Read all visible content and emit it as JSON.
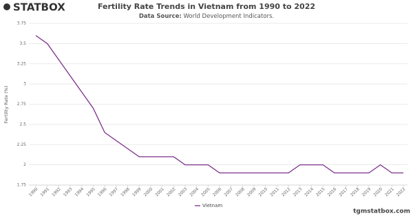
{
  "chart_data": {
    "type": "line",
    "logo": "STATBOX",
    "title": "Fertility Rate Trends in Vietnam from 1990 to 2022",
    "subtitle_label": "Data Source:",
    "subtitle": "World Development Indicators.",
    "y_label": "Fertility Rate (%)",
    "footer": "tgmstatbox.com",
    "x": [
      1990,
      1991,
      1992,
      1993,
      1994,
      1995,
      1996,
      1997,
      1998,
      1999,
      2000,
      2001,
      2002,
      2003,
      2004,
      2005,
      2006,
      2007,
      2008,
      2009,
      2010,
      2011,
      2012,
      2013,
      2014,
      2015,
      2016,
      2017,
      2018,
      2019,
      2020,
      2021,
      2022
    ],
    "xlim": [
      1990,
      2022
    ],
    "xticks": [
      1990,
      1991,
      1992,
      1993,
      1994,
      1995,
      1996,
      1997,
      1998,
      1999,
      2000,
      2001,
      2002,
      2003,
      2004,
      2005,
      2006,
      2007,
      2008,
      2009,
      2010,
      2011,
      2012,
      2013,
      2014,
      2015,
      2016,
      2017,
      2018,
      2019,
      2020,
      2021,
      2022
    ],
    "series": [
      {
        "name": "Vietnam",
        "color": "#7b2d8b",
        "values": [
          3.6,
          3.5,
          3.3,
          3.1,
          2.9,
          2.7,
          2.4,
          2.3,
          2.2,
          2.1,
          2.1,
          2.1,
          2.1,
          2.0,
          2.0,
          2.0,
          1.9,
          1.9,
          1.9,
          1.9,
          1.9,
          1.9,
          1.9,
          2.0,
          2.0,
          2.0,
          1.9,
          1.9,
          1.9,
          1.9,
          2.0,
          1.9,
          1.9
        ]
      }
    ],
    "ylim": [
      1.75,
      3.75
    ],
    "yticks": [
      1.75,
      2,
      2.25,
      2.5,
      2.75,
      3,
      3.25,
      3.5,
      3.75
    ],
    "grid": true
  }
}
